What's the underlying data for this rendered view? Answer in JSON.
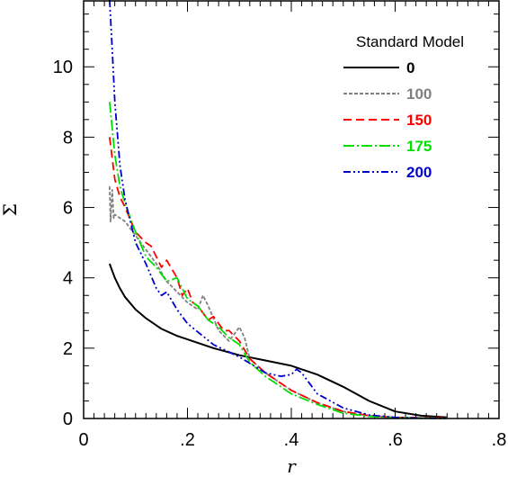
{
  "chart_data": {
    "type": "line",
    "title": "",
    "xlabel": "r",
    "ylabel": "Σ",
    "xlim": [
      0,
      0.8
    ],
    "ylim": [
      0,
      11.9
    ],
    "x_ticks": [
      0,
      0.2,
      0.4,
      0.6,
      0.8
    ],
    "x_tick_labels": [
      "0",
      ".2",
      ".4",
      ".6",
      ".8"
    ],
    "y_ticks": [
      0,
      2,
      4,
      6,
      8,
      10
    ],
    "y_tick_labels": [
      "0",
      "2",
      "4",
      "6",
      "8",
      "10"
    ],
    "grid": false,
    "legend_position": "top-right",
    "legend_title": "Standard Model",
    "series": [
      {
        "name": "0",
        "color": "#000000",
        "dash": "solid",
        "x": [
          0.05,
          0.06,
          0.07,
          0.08,
          0.1,
          0.12,
          0.15,
          0.18,
          0.2,
          0.25,
          0.3,
          0.35,
          0.4,
          0.45,
          0.5,
          0.55,
          0.6,
          0.65,
          0.7
        ],
        "y": [
          4.4,
          4.0,
          3.7,
          3.45,
          3.1,
          2.85,
          2.55,
          2.35,
          2.25,
          2.0,
          1.8,
          1.65,
          1.5,
          1.25,
          0.9,
          0.5,
          0.2,
          0.08,
          0.03
        ]
      },
      {
        "name": "100",
        "color": "#808080",
        "dash": "short-dash",
        "x": [
          0.05,
          0.052,
          0.055,
          0.058,
          0.06,
          0.08,
          0.1,
          0.12,
          0.14,
          0.16,
          0.18,
          0.2,
          0.22,
          0.23,
          0.24,
          0.26,
          0.28,
          0.3,
          0.31,
          0.32,
          0.35,
          0.4,
          0.45,
          0.5,
          0.55,
          0.6,
          0.65,
          0.7
        ],
        "y": [
          6.6,
          5.6,
          6.5,
          5.7,
          5.8,
          5.6,
          5.2,
          4.8,
          4.4,
          3.9,
          3.6,
          3.3,
          3.1,
          3.5,
          3.2,
          2.5,
          2.2,
          2.6,
          2.3,
          1.7,
          1.3,
          0.8,
          0.45,
          0.2,
          0.08,
          0.03,
          0.02,
          0.01
        ]
      },
      {
        "name": "150",
        "color": "#ff0000",
        "dash": "dash",
        "x": [
          0.05,
          0.06,
          0.07,
          0.08,
          0.1,
          0.12,
          0.13,
          0.15,
          0.16,
          0.18,
          0.19,
          0.2,
          0.21,
          0.22,
          0.24,
          0.25,
          0.27,
          0.28,
          0.3,
          0.32,
          0.35,
          0.4,
          0.45,
          0.5,
          0.55,
          0.6,
          0.65,
          0.7
        ],
        "y": [
          8.0,
          6.8,
          6.3,
          6.0,
          5.3,
          5.0,
          4.9,
          4.3,
          4.5,
          4.0,
          3.5,
          3.7,
          3.3,
          3.2,
          2.8,
          2.9,
          2.5,
          2.5,
          2.2,
          1.7,
          1.3,
          0.8,
          0.45,
          0.2,
          0.08,
          0.03,
          0.02,
          0.01
        ]
      },
      {
        "name": "175",
        "color": "#00e000",
        "dash": "long-dash-dot",
        "x": [
          0.05,
          0.06,
          0.07,
          0.08,
          0.1,
          0.12,
          0.14,
          0.16,
          0.18,
          0.2,
          0.22,
          0.24,
          0.26,
          0.28,
          0.3,
          0.32,
          0.35,
          0.4,
          0.45,
          0.5,
          0.55,
          0.6,
          0.65,
          0.7
        ],
        "y": [
          9.0,
          7.5,
          6.6,
          6.1,
          5.3,
          4.6,
          4.3,
          3.9,
          4.0,
          3.4,
          3.2,
          2.8,
          2.6,
          2.3,
          2.1,
          1.6,
          1.2,
          0.7,
          0.4,
          0.15,
          0.06,
          0.02,
          0.01,
          0.0
        ]
      },
      {
        "name": "200",
        "color": "#0000cc",
        "dash": "dash-dot-dot",
        "x": [
          0.05,
          0.055,
          0.06,
          0.07,
          0.08,
          0.1,
          0.12,
          0.14,
          0.15,
          0.16,
          0.18,
          0.2,
          0.25,
          0.3,
          0.35,
          0.38,
          0.4,
          0.41,
          0.42,
          0.45,
          0.5,
          0.55,
          0.6,
          0.65,
          0.7
        ],
        "y": [
          11.9,
          10.5,
          9.0,
          7.2,
          6.2,
          5.0,
          4.4,
          3.7,
          3.5,
          3.6,
          3.1,
          2.7,
          2.1,
          1.75,
          1.3,
          1.2,
          1.25,
          1.4,
          1.3,
          0.7,
          0.3,
          0.1,
          0.03,
          0.01,
          0.0
        ]
      }
    ]
  }
}
